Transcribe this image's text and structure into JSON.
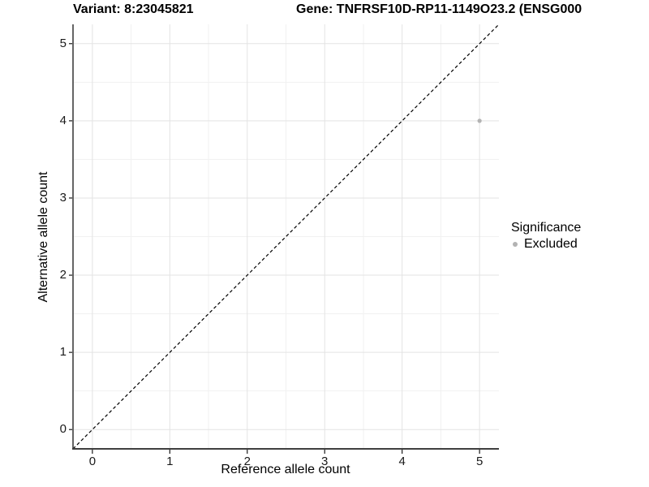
{
  "header": {
    "variant_title": "Variant: 8:23045821",
    "gene_title": "Gene: TNFRSF10D-RP11-1149O23.2 (ENSG000"
  },
  "chart_data": {
    "type": "scatter",
    "xlabel": "Reference allele count",
    "ylabel": "Alternative allele count",
    "xlim": [
      -0.25,
      5.25
    ],
    "ylim": [
      -0.25,
      5.25
    ],
    "xticks": [
      0,
      1,
      2,
      3,
      4,
      5
    ],
    "yticks": [
      0,
      1,
      2,
      3,
      4,
      5
    ],
    "minor_grid_step": 0.5,
    "grid": "on",
    "reference_line": {
      "type": "identity",
      "style": "dashed",
      "from": [
        -0.25,
        -0.25
      ],
      "to": [
        5.25,
        5.25
      ]
    },
    "series": [
      {
        "name": "Excluded",
        "color": "#b3b3b3",
        "points": [
          {
            "x": 5,
            "y": 4
          }
        ]
      }
    ],
    "legend": {
      "title": "Significance",
      "position": "right",
      "entries": [
        {
          "label": "Excluded",
          "color": "#b3b3b3"
        }
      ]
    }
  },
  "style": {
    "background": "#ffffff",
    "grid_major_color": "#e3e3e3",
    "grid_minor_color": "#f1f1f1",
    "axis_line_color": "#3f3f3f",
    "tick_color": "#1a1a1a",
    "dashed_line_color": "#000000"
  }
}
